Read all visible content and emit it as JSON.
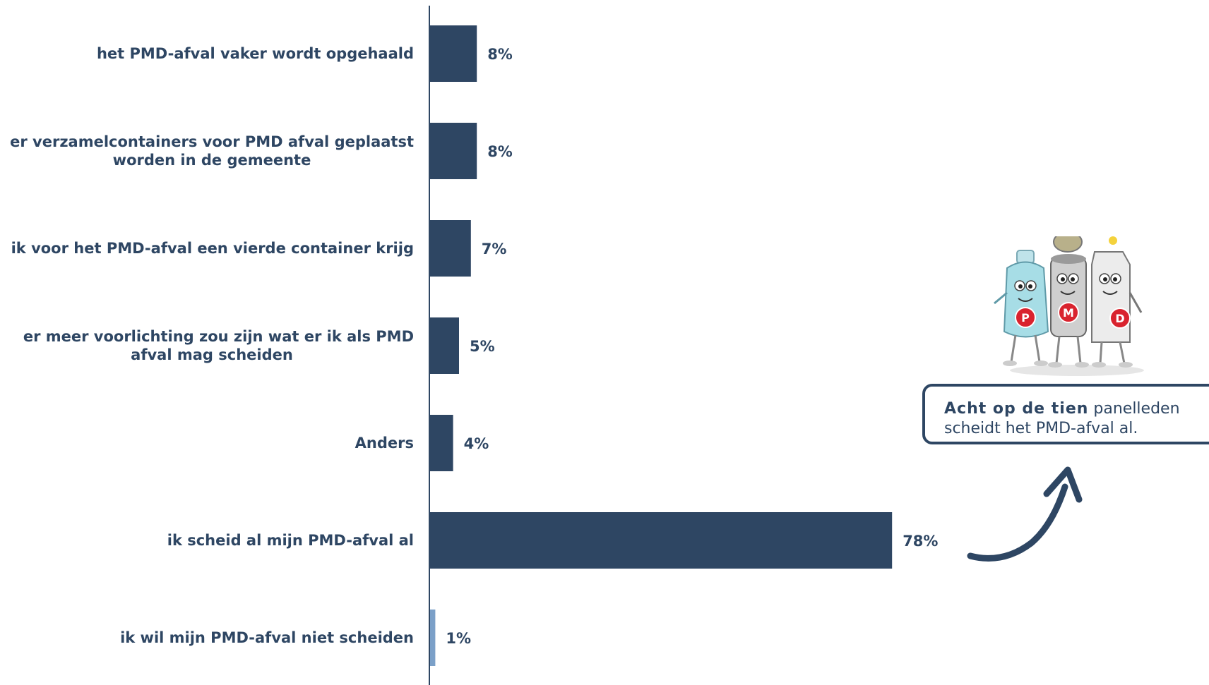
{
  "chart_data": {
    "type": "bar",
    "orientation": "horizontal",
    "categories": [
      [
        "het PMD-afval vaker wordt opgehaald"
      ],
      [
        "er verzamelcontainers voor PMD afval geplaatst",
        "worden in de gemeente"
      ],
      [
        "ik voor het PMD-afval een vierde container krijg"
      ],
      [
        "er meer voorlichting zou zijn wat er ik als PMD",
        "afval mag scheiden"
      ],
      [
        "Anders"
      ],
      [
        "ik scheid al mijn PMD-afval al"
      ],
      [
        "ik wil mijn PMD-afval niet scheiden"
      ]
    ],
    "values": [
      8,
      8,
      7,
      5,
      4,
      78,
      1
    ],
    "value_labels": [
      "8%",
      "8%",
      "7%",
      "5%",
      "4%",
      "78%",
      "1%"
    ],
    "bar_colors": [
      "#2e4663",
      "#2e4663",
      "#2e4663",
      "#2e4663",
      "#2e4663",
      "#2e4663",
      "#7ba0c8"
    ],
    "xlim": [
      0,
      100
    ],
    "grid": false,
    "title": "",
    "xlabel": "",
    "ylabel": ""
  },
  "colors": {
    "primary": "#2e4663",
    "highlight": "#7ba0c8",
    "axis": "#2e4663"
  },
  "callout": {
    "bold_text": "Acht op de tien",
    "rest_text": " panelleden scheidt het PMD-afval al."
  },
  "mascots": {
    "icon": "pmd-mascots-illustration",
    "letters": [
      "P",
      "M",
      "D"
    ]
  }
}
